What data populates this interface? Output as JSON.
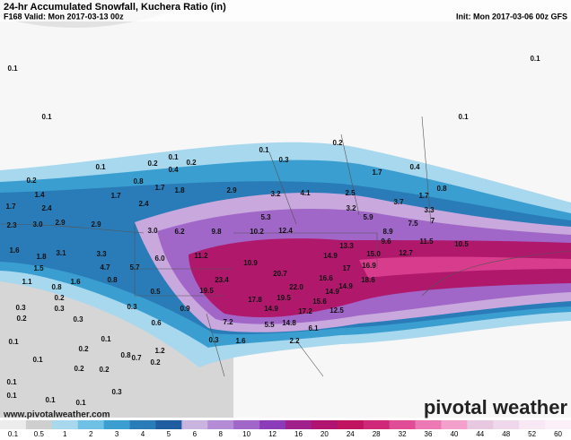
{
  "header": {
    "title": "24-hr Accumulated Snowfall, Kuchera Ratio (in)",
    "valid": "F168 Valid: Mon 2017-03-13 00z",
    "init": "Init: Mon 2017-03-06 00z GFS"
  },
  "footer": {
    "website": "www.pivotalweather.com",
    "logo": "pivotal weather"
  },
  "colorbar": {
    "ticks": [
      0.1,
      0.5,
      1,
      2,
      3,
      4,
      5,
      6,
      8,
      10,
      12,
      16,
      20,
      24,
      28,
      32,
      36,
      40,
      44,
      48,
      52,
      60
    ],
    "colors": [
      "#ececec",
      "#cfcfcf",
      "#a8d8ee",
      "#6ec1e4",
      "#3a9fd0",
      "#2a7cb8",
      "#1f5ca0",
      "#c9b4e0",
      "#b48cd6",
      "#a066c8",
      "#8c3cb8",
      "#a0208c",
      "#b01470",
      "#c01460",
      "#d02878",
      "#e04c98",
      "#ec78b4",
      "#f4a0cc",
      "#e8c8e0",
      "#f0d8ec",
      "#f8e8f4",
      "#fcf0f8"
    ]
  },
  "map_labels": [
    "0.1",
    "0.1",
    "0.1",
    "0.1",
    "0.2",
    "0.1",
    "0.3",
    "0.1",
    "0.2",
    "0.1",
    "0.2",
    "0.4",
    "0.2",
    "1.7",
    "0.4",
    "0.8",
    "1.7",
    "1.8",
    "2.9",
    "3.2",
    "4.1",
    "2.5",
    "1.4",
    "1.7",
    "1.7",
    "0.8",
    "2.4",
    "3.7",
    "3.3",
    "1.7",
    "2.4",
    "3.2",
    "5.3",
    "5.9",
    "7.5",
    "7",
    "2.3",
    "3.0",
    "2.9",
    "2.9",
    "8.9",
    "3.0",
    "6.2",
    "9.8",
    "10.2",
    "12.4",
    "9.6",
    "11.5",
    "10.5",
    "13.3",
    "15.0",
    "12.7",
    "1.6",
    "3.1",
    "3.3",
    "6.0",
    "11.2",
    "14.9",
    "1.8",
    "10.9",
    "4.7",
    "5.7",
    "17",
    "16.9",
    "1.5",
    "20.7",
    "0.8",
    "1.1",
    "1.6",
    "16.6",
    "18.6",
    "23.4",
    "14.9",
    "0.8",
    "0.5",
    "19.5",
    "22.0",
    "14.9",
    "0.2",
    "17.8",
    "19.5",
    "15.6",
    "0.3",
    "0.3",
    "0.3",
    "0.9",
    "14.9",
    "17.2",
    "12.5",
    "0.2",
    "0.3",
    "0.6",
    "7.2",
    "5.5",
    "14.8",
    "6.1",
    "1.2",
    "0.3",
    "1.6",
    "2.2",
    "0.1",
    "0.1",
    "0.2",
    "0.1",
    "0.2",
    "0.8",
    "0.7",
    "0.2",
    "0.2",
    "0.1",
    "0.1",
    "0.3",
    "0.1",
    "0.1"
  ]
}
